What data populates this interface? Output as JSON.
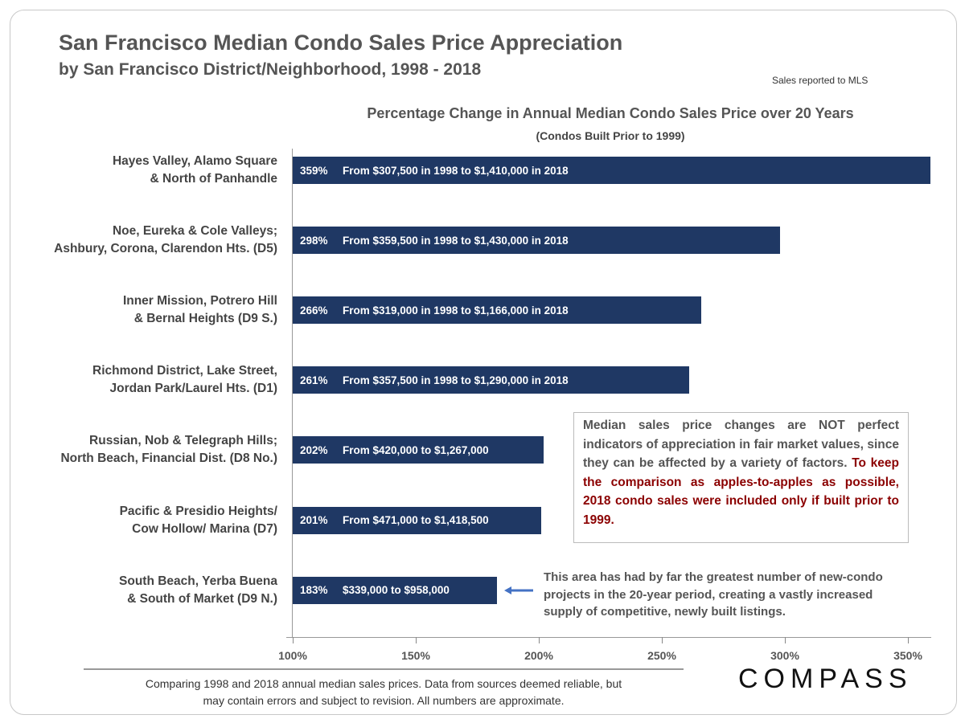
{
  "header": {
    "title": "San Francisco Median Condo Sales Price Appreciation",
    "subtitle": "by San Francisco District/Neighborhood,  1998 - 2018",
    "source": "Sales reported to MLS"
  },
  "chart_data": {
    "type": "bar",
    "orientation": "horizontal",
    "title": "Percentage Change in Annual Median Condo Sales Price over 20 Years",
    "subtitle": "(Condos Built Prior to 1999)",
    "categories": [
      "Hayes Valley, Alamo Square & North of Panhandle",
      "Noe, Eureka & Cole Valleys; Ashbury, Corona, Clarendon Hts. (D5)",
      "Inner Mission, Potrero Hill & Bernal Heights (D9 S.)",
      "Richmond District, Lake Street, Jordan Park/Laurel Hts. (D1)",
      "Russian, Nob & Telegraph Hills; North Beach, Financial Dist. (D8 No.)",
      "Pacific & Presidio Heights/ Cow Hollow/ Marina (D7)",
      "South Beach, Yerba Buena & South of Market (D9 N.)"
    ],
    "category_lines": [
      [
        "Hayes Valley, Alamo Square",
        "& North of Panhandle"
      ],
      [
        "Noe, Eureka & Cole Valleys;",
        "Ashbury, Corona, Clarendon Hts. (D5)"
      ],
      [
        "Inner Mission, Potrero Hill",
        "& Bernal Heights (D9 S.)"
      ],
      [
        "Richmond District, Lake Street,",
        "Jordan Park/Laurel Hts. (D1)"
      ],
      [
        "Russian, Nob & Telegraph Hills;",
        "North Beach, Financial Dist. (D8 No.)"
      ],
      [
        "Pacific & Presidio Heights/",
        "Cow Hollow/ Marina (D7)"
      ],
      [
        "South Beach, Yerba Buena",
        "& South of Market (D9 N.)"
      ]
    ],
    "values": [
      359,
      298,
      266,
      261,
      202,
      201,
      183
    ],
    "value_labels": [
      "359%",
      "298%",
      "266%",
      "261%",
      "202%",
      "201%",
      "183%"
    ],
    "bar_notes": [
      "From $307,500 in 1998 to $1,410,000 in 2018",
      "From $359,500 in 1998 to $1,430,000 in 2018",
      "From $319,000 in 1998 to $1,166,000 in 2018",
      "From $357,500 in 1998 to $1,290,000 in 2018",
      "From $420,000 to $1,267,000",
      "From $471,000 to $1,418,500",
      "$339,000 to $958,000"
    ],
    "xlim": [
      100,
      360
    ],
    "xticks": [
      "100%",
      "150%",
      "200%",
      "250%",
      "300%",
      "350%"
    ],
    "xtick_values": [
      100,
      150,
      200,
      250,
      300,
      350
    ],
    "grid": false,
    "bar_color": "#1f3864"
  },
  "note": {
    "gray": "Median sales price changes are NOT perfect indicators of appreciation in fair market values, since they can be affected by a variety of factors.",
    "red": "To keep the comparison as apples-to-apples as possible, 2018  condo sales were included only if built prior to 1999."
  },
  "callout": "This area has had by far the greatest number of new-condo projects in the 20-year period, creating a vastly increased supply of competitive, newly built listings.",
  "footer": {
    "line1": "Comparing 1998 and 2018 annual median sales prices. Data from sources deemed reliable, but",
    "line2": "may contain errors and subject to revision. All numbers are approximate.",
    "logo": "COMPASS"
  }
}
